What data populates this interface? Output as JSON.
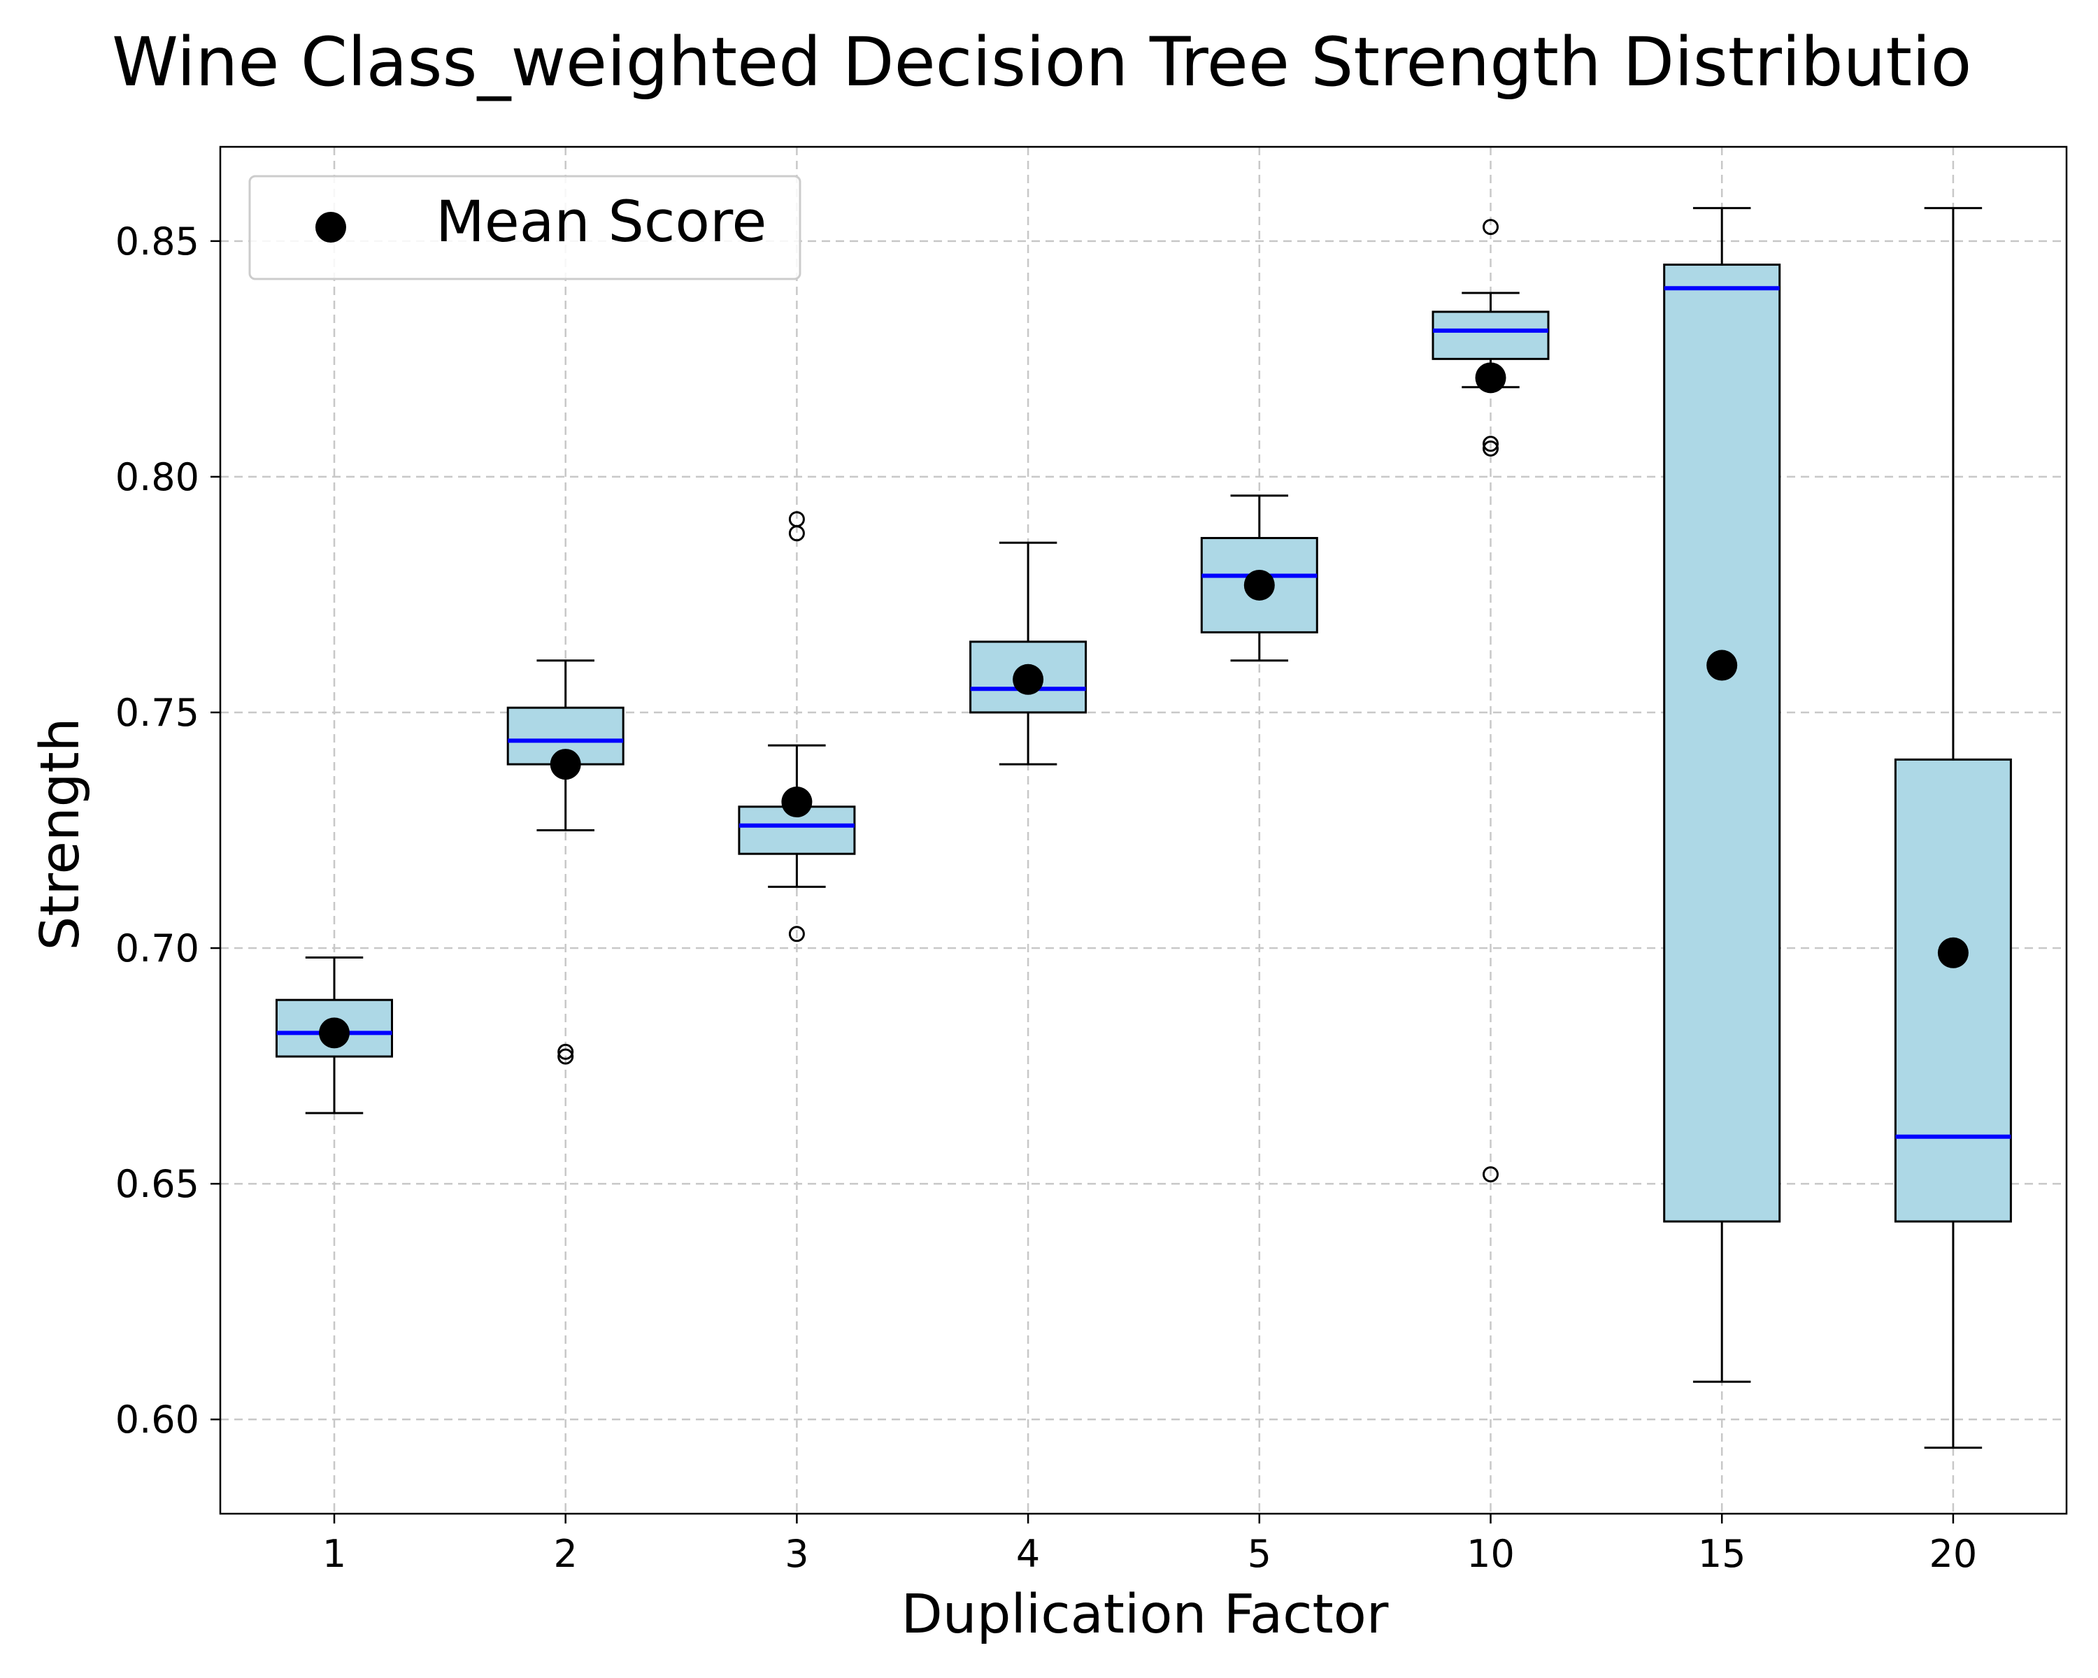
{
  "chart_data": {
    "type": "box",
    "title": "Wine Class_weighted Decision Tree Strength Distributio",
    "xlabel": "Duplication Factor",
    "ylabel": "Strength",
    "categories": [
      "1",
      "2",
      "3",
      "4",
      "5",
      "10",
      "15",
      "20"
    ],
    "ylim": [
      0.58,
      0.87
    ],
    "yticks": [
      "0.60",
      "0.65",
      "0.70",
      "0.75",
      "0.80",
      "0.85"
    ],
    "grid": true,
    "legend": {
      "position": "top-left",
      "entries": [
        "Mean Score"
      ]
    },
    "colors": {
      "box_fill": "#add8e6",
      "median": "#0000ff",
      "mean_marker": "#000000"
    },
    "boxes": [
      {
        "category": "1",
        "whisker_low": 0.665,
        "q1": 0.677,
        "median": 0.682,
        "q3": 0.689,
        "whisker_high": 0.698,
        "mean": 0.682,
        "outliers": []
      },
      {
        "category": "2",
        "whisker_low": 0.725,
        "q1": 0.739,
        "median": 0.744,
        "q3": 0.751,
        "whisker_high": 0.761,
        "mean": 0.739,
        "outliers": [
          0.678,
          0.677
        ]
      },
      {
        "category": "3",
        "whisker_low": 0.713,
        "q1": 0.72,
        "median": 0.726,
        "q3": 0.73,
        "whisker_high": 0.743,
        "mean": 0.731,
        "outliers": [
          0.791,
          0.788,
          0.703
        ]
      },
      {
        "category": "4",
        "whisker_low": 0.739,
        "q1": 0.75,
        "median": 0.755,
        "q3": 0.765,
        "whisker_high": 0.786,
        "mean": 0.757,
        "outliers": []
      },
      {
        "category": "5",
        "whisker_low": 0.761,
        "q1": 0.767,
        "median": 0.779,
        "q3": 0.787,
        "whisker_high": 0.796,
        "mean": 0.777,
        "outliers": []
      },
      {
        "category": "10",
        "whisker_low": 0.819,
        "q1": 0.825,
        "median": 0.831,
        "q3": 0.835,
        "whisker_high": 0.839,
        "mean": 0.821,
        "outliers": [
          0.853,
          0.807,
          0.806,
          0.652
        ]
      },
      {
        "category": "15",
        "whisker_low": 0.608,
        "q1": 0.642,
        "median": 0.84,
        "q3": 0.845,
        "whisker_high": 0.857,
        "mean": 0.76,
        "outliers": []
      },
      {
        "category": "20",
        "whisker_low": 0.594,
        "q1": 0.642,
        "median": 0.66,
        "q3": 0.74,
        "whisker_high": 0.857,
        "mean": 0.699,
        "outliers": []
      }
    ]
  }
}
